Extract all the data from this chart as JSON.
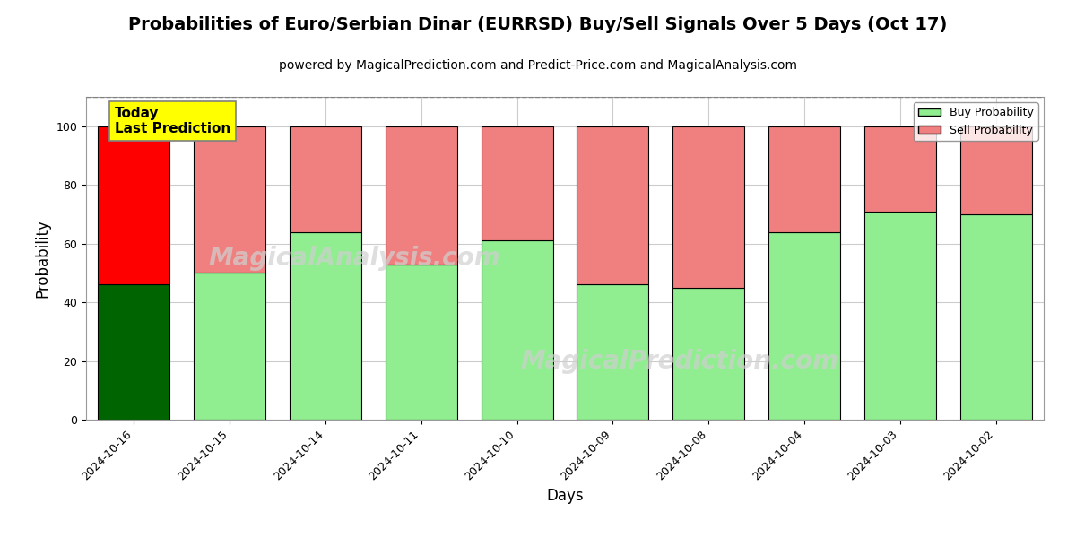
{
  "title": "Probabilities of Euro/Serbian Dinar (EURRSD) Buy/Sell Signals Over 5 Days (Oct 17)",
  "subtitle": "powered by MagicalPrediction.com and Predict-Price.com and MagicalAnalysis.com",
  "xlabel": "Days",
  "ylabel": "Probability",
  "categories": [
    "2024-10-16",
    "2024-10-15",
    "2024-10-14",
    "2024-10-11",
    "2024-10-10",
    "2024-10-09",
    "2024-10-08",
    "2024-10-04",
    "2024-10-03",
    "2024-10-02"
  ],
  "buy_values": [
    46,
    50,
    64,
    53,
    61,
    46,
    45,
    64,
    71,
    70
  ],
  "sell_values": [
    54,
    50,
    36,
    47,
    39,
    54,
    55,
    36,
    29,
    30
  ],
  "first_bar_buy_color": "#006400",
  "first_bar_sell_color": "#FF0000",
  "other_buy_color": "#90EE90",
  "other_sell_color": "#F08080",
  "bar_edge_color": "black",
  "bar_edge_width": 0.8,
  "ylim": [
    0,
    110
  ],
  "yticks": [
    0,
    20,
    40,
    60,
    80,
    100
  ],
  "dashed_line_y": 110,
  "legend_buy_label": "Buy Probability",
  "legend_sell_label": "Sell Probability",
  "annotation_text": "Today\nLast Prediction",
  "annotation_bg": "yellow",
  "grid_color": "#cccccc",
  "watermark_color": "#cccccc",
  "figsize": [
    12,
    6
  ],
  "dpi": 100,
  "title_fontsize": 14,
  "subtitle_fontsize": 10,
  "axis_label_fontsize": 12,
  "tick_fontsize": 9,
  "bar_width": 0.75
}
